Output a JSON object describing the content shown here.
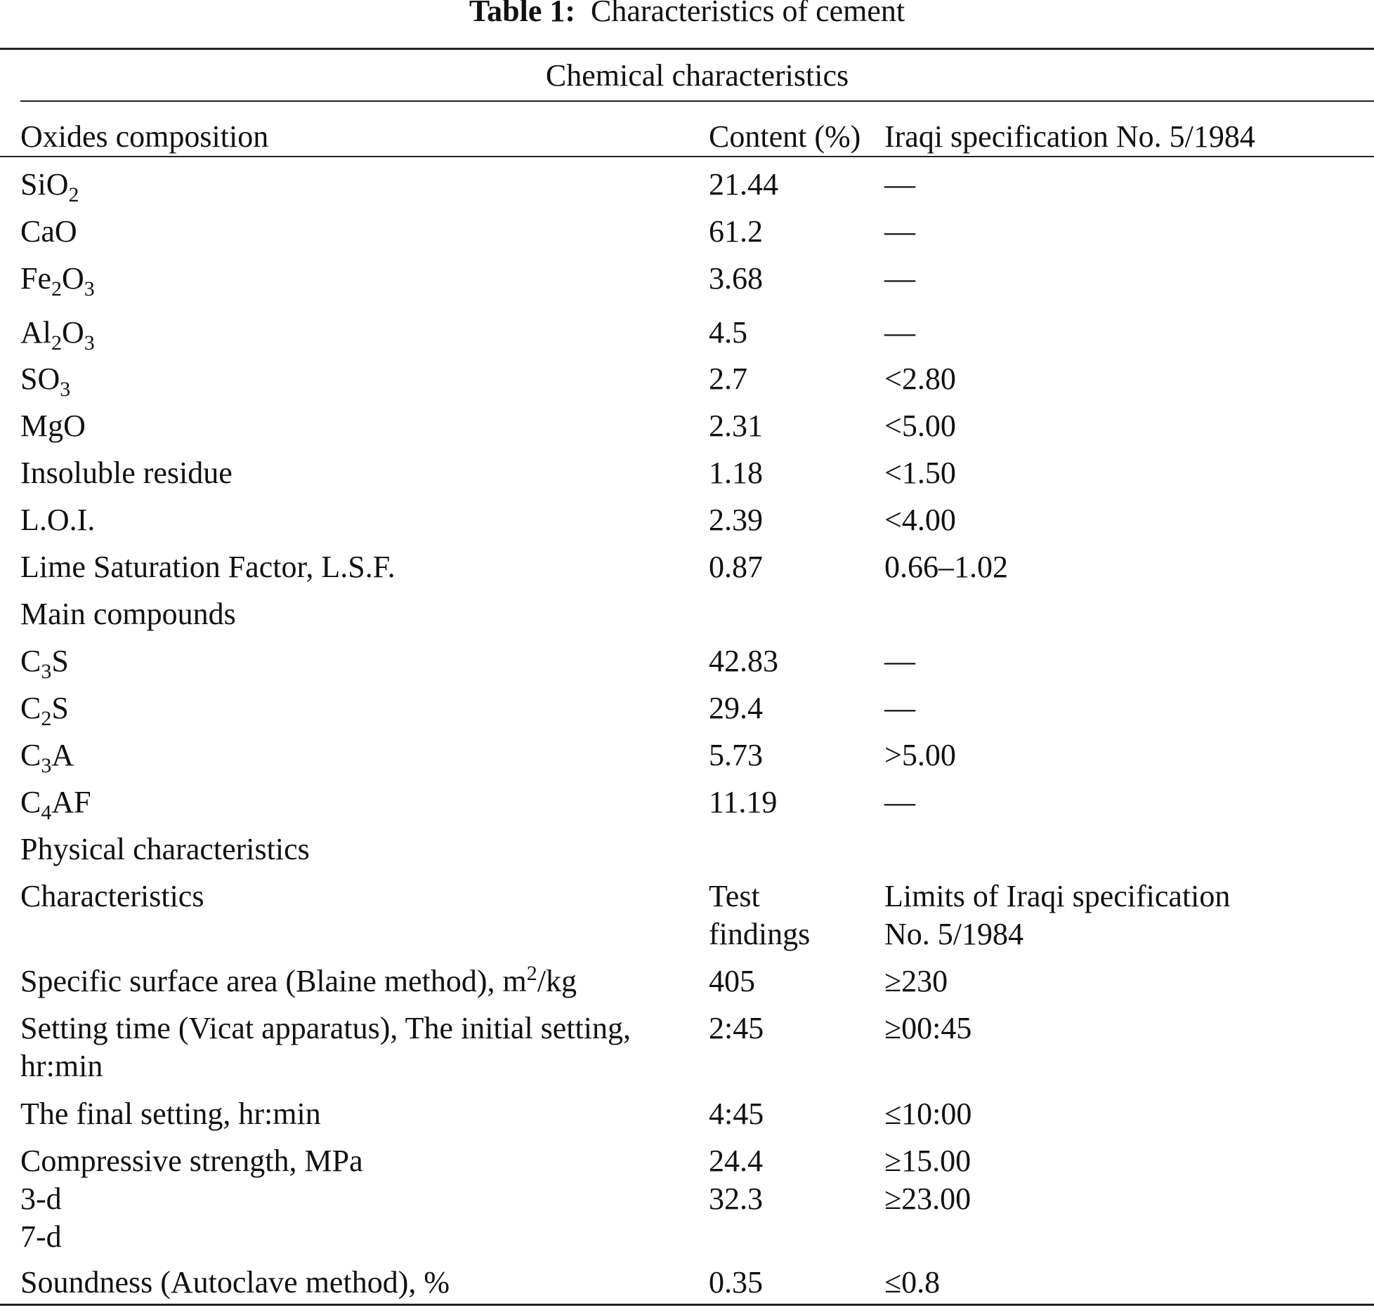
{
  "table": {
    "label": "Table 1:",
    "caption": "Characteristics of cement",
    "chemical_section": "Chemical characteristics",
    "chemical_headers": [
      "Oxides composition",
      "Content (%)",
      "Iraqi specification No. 5/1984"
    ],
    "oxides": [
      {
        "base": "SiO",
        "sub": "2",
        "tail": "",
        "content": "21.44",
        "spec": "—"
      },
      {
        "base": "CaO",
        "sub": "",
        "tail": "",
        "content": "61.2",
        "spec": "—"
      },
      {
        "base": "Fe",
        "sub": "2",
        "tail": "O",
        "sub2": "3",
        "content": "3.68",
        "spec": "—"
      },
      {
        "base": "Al",
        "sub": "2",
        "tail": "O",
        "sub2": "3",
        "content": "4.5",
        "spec": "—"
      },
      {
        "base": "SO",
        "sub": "3",
        "tail": "",
        "content": "2.7",
        "spec": "<2.80"
      },
      {
        "base": "MgO",
        "sub": "",
        "tail": "",
        "content": "2.31",
        "spec": "<5.00"
      },
      {
        "base": "Insoluble residue",
        "sub": "",
        "tail": "",
        "content": "1.18",
        "spec": "<1.50"
      },
      {
        "base": "L.O.I.",
        "sub": "",
        "tail": "",
        "content": "2.39",
        "spec": "<4.00"
      },
      {
        "base": "Lime Saturation Factor, L.S.F.",
        "sub": "",
        "tail": "",
        "content": "0.87",
        "spec": "0.66–1.02"
      }
    ],
    "main_compounds_label": "Main compounds",
    "compounds": [
      {
        "base": "C",
        "sub": "3",
        "tail": "S",
        "content": "42.83",
        "spec": "—"
      },
      {
        "base": "C",
        "sub": "2",
        "tail": "S",
        "content": "29.4",
        "spec": "—"
      },
      {
        "base": "C",
        "sub": "3",
        "tail": "A",
        "content": "5.73",
        "spec": ">5.00"
      },
      {
        "base": "C",
        "sub": "4",
        "tail": "AF",
        "content": "11.19",
        "spec": "—"
      }
    ],
    "physical_section": "Physical characteristics",
    "physical_headers": {
      "c1": "Characteristics",
      "c2_line1": "Test",
      "c2_line2": "findings",
      "c3_line1": "Limits of Iraqi specification",
      "c3_line2": "No. 5/1984"
    },
    "physical": {
      "surface_pre": "Specific surface area (Blaine method), m",
      "surface_sup": "2",
      "surface_post": "/kg",
      "surface_val": "405",
      "surface_spec": "≥230",
      "setting_line1": "Setting time (Vicat apparatus), The initial setting,",
      "setting_line2": "hr:min",
      "setting_val": "2:45",
      "setting_spec": "≥00:45",
      "final_label": "The final setting, hr:min",
      "final_val": "4:45",
      "final_spec": "≤10:00",
      "comp_label": "Compressive strength, MPa",
      "comp_3d": "3-d",
      "comp_7d": "7-d",
      "comp_val1": "24.4",
      "comp_val2": "32.3",
      "comp_spec1": "≥15.00",
      "comp_spec2": "≥23.00",
      "sound_label": "Soundness (Autoclave method), %",
      "sound_val": "0.35",
      "sound_spec": "≤0.8"
    }
  }
}
